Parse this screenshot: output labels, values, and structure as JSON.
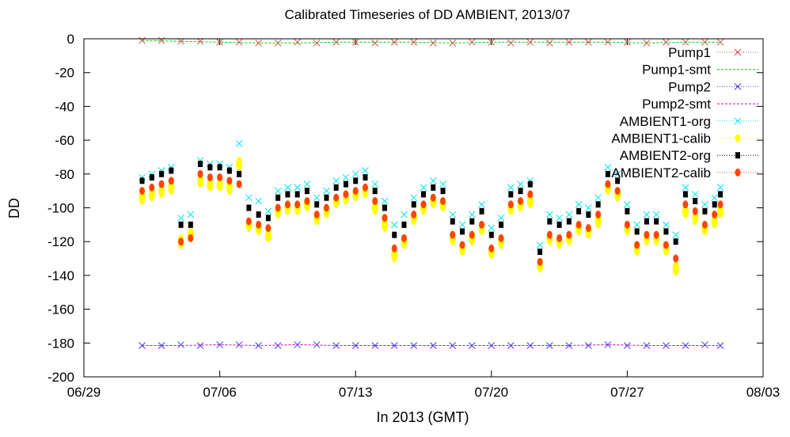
{
  "chart_data": {
    "type": "scatter",
    "title": "Calibrated Timeseries of DD AMBIENT, 2013/07",
    "xlabel": "In 2013 (GMT)",
    "ylabel": "DD",
    "x_ticks": [
      "06/29",
      "07/06",
      "07/13",
      "07/20",
      "07/27",
      "08/03"
    ],
    "x_tick_days": [
      0,
      7,
      14,
      21,
      28,
      35
    ],
    "x_range_days": [
      0,
      35
    ],
    "ylim": [
      -200,
      0
    ],
    "y_ticks": [
      0,
      -20,
      -40,
      -60,
      -80,
      -100,
      -120,
      -140,
      -160,
      -180,
      -200
    ],
    "grid": false,
    "legend_position": "top-right",
    "series": [
      {
        "name": "Pump1",
        "color": "#e05050",
        "marker": "x",
        "x": [
          3,
          4,
          5,
          6,
          7,
          8,
          9,
          10,
          11,
          12,
          13,
          14,
          15,
          16,
          17,
          18,
          19,
          20,
          21,
          22,
          23,
          24,
          25,
          26,
          27,
          28,
          29,
          30,
          31,
          32,
          32.8
        ],
        "y": [
          -1,
          -1,
          -1.5,
          -1.5,
          -2,
          -2,
          -2.5,
          -2.5,
          -2,
          -2.5,
          -2,
          -2,
          -2.5,
          -2,
          -2,
          -2.5,
          -2.5,
          -2,
          -2,
          -2.5,
          -2,
          -2.5,
          -2,
          -2,
          -2,
          -2,
          -2.5,
          -2,
          -2,
          -2,
          -2
        ]
      },
      {
        "name": "Pump1-smt",
        "color": "#00cc00",
        "marker": "line",
        "x": [
          3,
          5,
          7,
          9,
          11,
          13,
          15,
          17,
          19,
          21,
          23,
          25,
          27,
          29,
          31,
          32.8
        ],
        "y": [
          -1,
          -1.5,
          -2,
          -2.5,
          -2.5,
          -2,
          -2,
          -2,
          -2.5,
          -2,
          -2,
          -2,
          -2,
          -2.5,
          -2,
          -2
        ]
      },
      {
        "name": "Pump2",
        "color": "#4040e0",
        "marker": "x",
        "x": [
          3,
          4,
          5,
          6,
          7,
          8,
          9,
          10,
          11,
          12,
          13,
          14,
          15,
          16,
          17,
          18,
          19,
          20,
          21,
          22,
          23,
          24,
          25,
          26,
          27,
          28,
          29,
          30,
          31,
          32,
          32.8
        ],
        "y": [
          -181.5,
          -181.5,
          -181,
          -181.5,
          -181,
          -181,
          -181.5,
          -181.5,
          -181,
          -181,
          -181.5,
          -181.5,
          -181.5,
          -181.5,
          -181.5,
          -181.5,
          -181.5,
          -181.5,
          -181.5,
          -181.5,
          -181.5,
          -181.5,
          -181.5,
          -181.5,
          -181,
          -181.5,
          -181.5,
          -181.5,
          -181.5,
          -181,
          -181.5
        ]
      },
      {
        "name": "Pump2-smt",
        "color": "#cc00cc",
        "marker": "line",
        "x": [
          3,
          5,
          7,
          9,
          11,
          13,
          15,
          17,
          19,
          21,
          23,
          25,
          27,
          29,
          31,
          32.8
        ],
        "y": [
          -181.5,
          -181.5,
          -181,
          -181.5,
          -181,
          -181.5,
          -181.5,
          -181.5,
          -181.5,
          -181.5,
          -181.5,
          -181.5,
          -181,
          -181.5,
          -181.5,
          -181.5
        ]
      },
      {
        "name": "AMBIENT1-org",
        "color": "#00e5ee",
        "marker": "x",
        "x": [
          3.0,
          3.5,
          4.0,
          4.5,
          5.0,
          5.5,
          6.0,
          6.5,
          7.0,
          7.5,
          8.0,
          8.5,
          9.0,
          9.5,
          10.0,
          10.5,
          11.0,
          11.5,
          12.0,
          12.5,
          13.0,
          13.5,
          14.0,
          14.5,
          15.0,
          15.5,
          16.0,
          16.5,
          17.0,
          17.5,
          18.0,
          18.5,
          19.0,
          19.5,
          20.0,
          20.5,
          21.0,
          21.5,
          22.0,
          22.5,
          23.0,
          23.5,
          24.0,
          24.5,
          25.0,
          25.5,
          26.0,
          26.5,
          27.0,
          27.5,
          28.0,
          28.5,
          29.0,
          29.5,
          30.0,
          30.5,
          31.0,
          31.5,
          32.0,
          32.5,
          32.8
        ],
        "y": [
          -82,
          -80,
          -78,
          -76,
          -106,
          -104,
          -72,
          -74,
          -74,
          -76,
          -62,
          -94,
          -96,
          -102,
          -90,
          -88,
          -88,
          -86,
          -94,
          -90,
          -84,
          -82,
          -80,
          -78,
          -86,
          -96,
          -110,
          -104,
          -94,
          -88,
          -84,
          -86,
          -104,
          -110,
          -104,
          -98,
          -112,
          -106,
          -88,
          -86,
          -84,
          -122,
          -104,
          -106,
          -104,
          -98,
          -100,
          -94,
          -76,
          -80,
          -98,
          -110,
          -104,
          -104,
          -110,
          -116,
          -88,
          -92,
          -98,
          -94,
          -88
        ]
      },
      {
        "name": "AMBIENT1-calib",
        "color": "#ffff00",
        "marker": "dot",
        "x": [
          3.0,
          3.5,
          4.0,
          4.5,
          5.0,
          5.5,
          6.0,
          6.5,
          7.0,
          7.5,
          8.0,
          8.5,
          9.0,
          9.5,
          10.0,
          10.5,
          11.0,
          11.5,
          12.0,
          12.5,
          13.0,
          13.5,
          14.0,
          14.5,
          15.0,
          15.5,
          16.0,
          16.5,
          17.0,
          17.5,
          18.0,
          18.5,
          19.0,
          19.5,
          20.0,
          20.5,
          21.0,
          21.5,
          22.0,
          22.5,
          23.0,
          23.5,
          24.0,
          24.5,
          25.0,
          25.5,
          26.0,
          26.5,
          27.0,
          27.5,
          28.0,
          28.5,
          29.0,
          29.5,
          30.0,
          30.5,
          31.0,
          31.5,
          32.0,
          32.5,
          32.8
        ],
        "y": [
          -94,
          -92,
          -90,
          -88,
          -120,
          -116,
          -84,
          -86,
          -86,
          -88,
          -74,
          -110,
          -112,
          -116,
          -102,
          -100,
          -100,
          -98,
          -106,
          -102,
          -96,
          -94,
          -92,
          -90,
          -100,
          -110,
          -128,
          -120,
          -106,
          -100,
          -96,
          -98,
          -118,
          -124,
          -118,
          -112,
          -126,
          -120,
          -100,
          -98,
          -96,
          -134,
          -118,
          -120,
          -118,
          -112,
          -114,
          -108,
          -88,
          -92,
          -112,
          -124,
          -118,
          -118,
          -124,
          -136,
          -102,
          -106,
          -112,
          -108,
          -102
        ]
      },
      {
        "name": "AMBIENT2-org",
        "color": "#000000",
        "marker": "square",
        "x": [
          3.0,
          3.5,
          4.0,
          4.5,
          5.0,
          5.5,
          6.0,
          6.5,
          7.0,
          7.5,
          8.0,
          8.5,
          9.0,
          9.5,
          10.0,
          10.5,
          11.0,
          11.5,
          12.0,
          12.5,
          13.0,
          13.5,
          14.0,
          14.5,
          15.0,
          15.5,
          16.0,
          16.5,
          17.0,
          17.5,
          18.0,
          18.5,
          19.0,
          19.5,
          20.0,
          20.5,
          21.0,
          21.5,
          22.0,
          22.5,
          23.0,
          23.5,
          24.0,
          24.5,
          25.0,
          25.5,
          26.0,
          26.5,
          27.0,
          27.5,
          28.0,
          28.5,
          29.0,
          29.5,
          30.0,
          30.5,
          31.0,
          31.5,
          32.0,
          32.5,
          32.8
        ],
        "y": [
          -84,
          -82,
          -80,
          -78,
          -110,
          -110,
          -74,
          -76,
          -76,
          -78,
          -80,
          -100,
          -104,
          -106,
          -94,
          -92,
          -92,
          -90,
          -98,
          -94,
          -88,
          -86,
          -84,
          -82,
          -90,
          -100,
          -116,
          -110,
          -98,
          -92,
          -88,
          -90,
          -108,
          -114,
          -108,
          -102,
          -116,
          -110,
          -92,
          -90,
          -86,
          -126,
          -108,
          -110,
          -108,
          -102,
          -104,
          -98,
          -80,
          -84,
          -102,
          -114,
          -108,
          -108,
          -114,
          -120,
          -92,
          -96,
          -102,
          -98,
          -92
        ]
      },
      {
        "name": "AMBIENT2-calib",
        "color": "#ff4500",
        "marker": "circle",
        "x": [
          3.0,
          3.5,
          4.0,
          4.5,
          5.0,
          5.5,
          6.0,
          6.5,
          7.0,
          7.5,
          8.0,
          8.5,
          9.0,
          9.5,
          10.0,
          10.5,
          11.0,
          11.5,
          12.0,
          12.5,
          13.0,
          13.5,
          14.0,
          14.5,
          15.0,
          15.5,
          16.0,
          16.5,
          17.0,
          17.5,
          18.0,
          18.5,
          19.0,
          19.5,
          20.0,
          20.5,
          21.0,
          21.5,
          22.0,
          22.5,
          23.0,
          23.5,
          24.0,
          24.5,
          25.0,
          25.5,
          26.0,
          26.5,
          27.0,
          27.5,
          28.0,
          28.5,
          29.0,
          29.5,
          30.0,
          30.5,
          31.0,
          31.5,
          32.0,
          32.5,
          32.8
        ],
        "y": [
          -90,
          -88,
          -86,
          -84,
          -120,
          -118,
          -80,
          -82,
          -82,
          -84,
          -86,
          -108,
          -110,
          -112,
          -100,
          -98,
          -98,
          -96,
          -104,
          -100,
          -94,
          -92,
          -90,
          -88,
          -96,
          -106,
          -124,
          -118,
          -104,
          -98,
          -94,
          -96,
          -116,
          -122,
          -116,
          -110,
          -124,
          -118,
          -98,
          -96,
          -92,
          -132,
          -116,
          -118,
          -116,
          -110,
          -112,
          -104,
          -86,
          -90,
          -110,
          -122,
          -116,
          -116,
          -122,
          -130,
          -98,
          -102,
          -110,
          -104,
          -98
        ]
      }
    ]
  }
}
